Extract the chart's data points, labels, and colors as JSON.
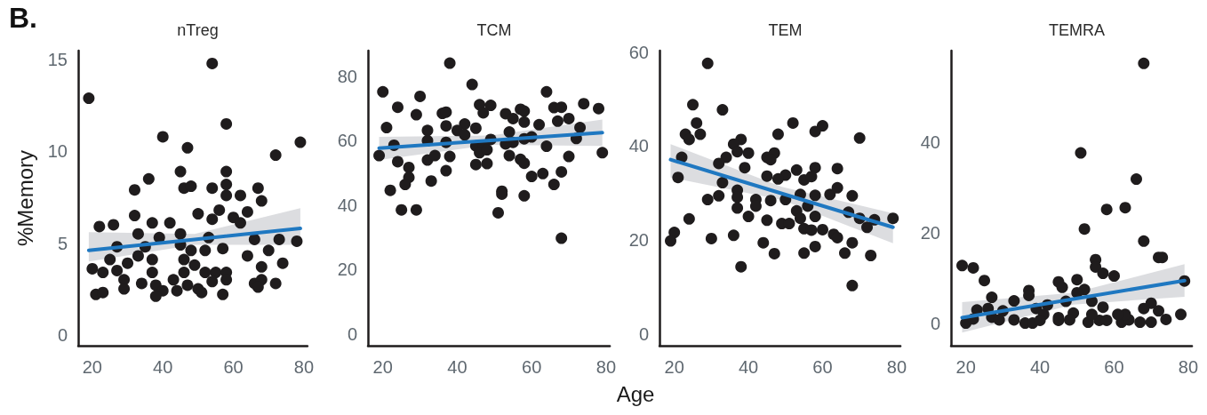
{
  "chart_data": [
    {
      "type": "scatter",
      "title": "nTreg",
      "ylabel": "%Memory",
      "annotations": [
        "B."
      ],
      "marker": "circle",
      "xlim": [
        16,
        81
      ],
      "xticks": [
        20,
        40,
        60,
        80
      ],
      "ylim": [
        -0.6,
        15.5
      ],
      "yticks": [
        0,
        5,
        10,
        15
      ],
      "series": [
        {
          "type": "scatter",
          "color": "#1f1c1d",
          "x": [
            19,
            54,
            58,
            40,
            47,
            79,
            72,
            45,
            58,
            36,
            32,
            46,
            48,
            54,
            58,
            58,
            62,
            67,
            68,
            50,
            64,
            32,
            56,
            54,
            37,
            42,
            26,
            22,
            60,
            62,
            33,
            45,
            39,
            53,
            66,
            73,
            78,
            27,
            35,
            45,
            48,
            52,
            57,
            70,
            33,
            37,
            46,
            64,
            25,
            20,
            23,
            27,
            30,
            49,
            37,
            46,
            52,
            55,
            58,
            68,
            74,
            29,
            34,
            43,
            47,
            54,
            58,
            66,
            68,
            72,
            29,
            38,
            40,
            44,
            50,
            21,
            23,
            38,
            51,
            57,
            67
          ],
          "values": [
            12.9,
            14.8,
            11.5,
            10.8,
            10.2,
            10.5,
            9.8,
            8.9,
            8.9,
            8.5,
            7.9,
            8.0,
            8.1,
            8.0,
            8.2,
            7.6,
            7.6,
            8.0,
            7.3,
            6.6,
            6.7,
            6.5,
            6.8,
            6.3,
            6.1,
            6.1,
            6.0,
            5.9,
            6.4,
            6.1,
            5.5,
            5.5,
            5.3,
            5.3,
            5.2,
            5.2,
            5.1,
            4.8,
            4.8,
            4.9,
            4.6,
            4.6,
            4.7,
            4.6,
            4.3,
            4.1,
            4.1,
            4.3,
            4.1,
            3.6,
            3.4,
            3.5,
            3.9,
            3.8,
            3.4,
            3.4,
            3.4,
            3.4,
            3.4,
            3.7,
            3.9,
            3.0,
            2.8,
            3.0,
            2.7,
            2.9,
            3.0,
            2.8,
            3.0,
            2.8,
            2.5,
            2.7,
            2.4,
            2.4,
            2.5,
            2.2,
            2.3,
            2.1,
            2.3,
            2.2,
            2.6
          ]
        },
        {
          "type": "line",
          "color": "#1f78c1",
          "marker": "none",
          "x": [
            19,
            49,
            79
          ],
          "values": [
            4.6,
            5.2,
            5.8
          ],
          "lower": [
            4.0,
            4.9,
            4.9
          ],
          "upper": [
            5.6,
            5.5,
            6.9
          ]
        }
      ]
    },
    {
      "type": "scatter",
      "title": "TCM",
      "xlabel": "Age",
      "marker": "circle",
      "xlim": [
        16,
        81
      ],
      "xticks": [
        20,
        40,
        60,
        80
      ],
      "ylim": [
        -3.7,
        88
      ],
      "yticks": [
        0,
        20,
        40,
        60,
        80
      ],
      "series": [
        {
          "type": "scatter",
          "color": "#1f1c1d",
          "x": [
            38,
            44,
            20,
            30,
            64,
            24,
            74,
            78,
            46,
            49,
            47,
            29,
            36,
            37,
            53,
            57,
            58,
            66,
            68,
            55,
            58,
            67,
            70,
            21,
            37,
            42,
            45,
            62,
            32,
            40,
            73,
            42,
            54,
            58,
            72,
            32,
            37,
            49,
            55,
            60,
            64,
            23,
            45,
            47,
            53,
            19,
            24,
            32,
            34,
            38,
            46,
            48,
            54,
            57,
            58,
            70,
            79,
            27,
            45,
            48,
            37,
            27,
            60,
            63,
            68,
            26,
            33,
            66,
            22,
            52,
            52,
            58,
            25,
            29,
            51,
            68
          ],
          "values": [
            84.1,
            77.5,
            75.2,
            73.8,
            75.2,
            70.4,
            71.5,
            70.0,
            71.2,
            71.0,
            68.7,
            68.1,
            68.5,
            68.9,
            68.4,
            69.8,
            69.2,
            70.3,
            70.4,
            66.9,
            65.8,
            66.1,
            66.9,
            64.1,
            64.6,
            65.2,
            63.9,
            65.0,
            63.2,
            63.2,
            64.1,
            61.8,
            62.7,
            60.6,
            60.7,
            60.0,
            59.5,
            60.4,
            59.5,
            61.2,
            58.3,
            58.6,
            58.4,
            58.4,
            59.0,
            55.4,
            53.5,
            54.0,
            55.4,
            55.1,
            56.3,
            57.2,
            55.4,
            54.2,
            53.0,
            55.1,
            56.3,
            51.7,
            52.6,
            52.9,
            50.7,
            48.6,
            48.9,
            49.8,
            50.3,
            46.4,
            47.5,
            46.4,
            44.6,
            44.3,
            43.4,
            42.9,
            38.5,
            38.5,
            37.6,
            29.7
          ]
        },
        {
          "type": "line",
          "color": "#1f78c1",
          "marker": "none",
          "x": [
            19,
            49,
            79
          ],
          "values": [
            57.7,
            60.1,
            62.5
          ],
          "lower": [
            54.0,
            58.7,
            58.4
          ],
          "upper": [
            61.2,
            61.6,
            66.6
          ]
        }
      ]
    },
    {
      "type": "scatter",
      "title": "TEM",
      "marker": "circle",
      "xlim": [
        16,
        81
      ],
      "xticks": [
        20,
        40,
        60,
        80
      ],
      "ylim": [
        -2.5,
        60.3
      ],
      "yticks": [
        0,
        20,
        40,
        60
      ],
      "series": [
        {
          "type": "scatter",
          "color": "#1f1c1d",
          "x": [
            29,
            25,
            33,
            26,
            52,
            60,
            58,
            23,
            27,
            24,
            48,
            70,
            38,
            36,
            37,
            40,
            47,
            34,
            45,
            46,
            22,
            32,
            39,
            58,
            64,
            53,
            21,
            45,
            50,
            48,
            55,
            57,
            33,
            37,
            54,
            58,
            62,
            64,
            68,
            29,
            32,
            42,
            46,
            50,
            37,
            37,
            42,
            56,
            53,
            54,
            58,
            67,
            70,
            74,
            79,
            24,
            40,
            45,
            72,
            49,
            51,
            55,
            57,
            60,
            63,
            64,
            20,
            19,
            30,
            36,
            44,
            68,
            58,
            47,
            55,
            66,
            73,
            38,
            68
          ],
          "values": [
            57.6,
            48.8,
            47.7,
            44.9,
            44.9,
            44.3,
            43.1,
            42.5,
            42.5,
            41.4,
            42.5,
            41.7,
            41.4,
            40.4,
            38.8,
            38.5,
            38.5,
            37.6,
            37.6,
            37.1,
            37.6,
            36.3,
            35.4,
            35.4,
            35.2,
            34.9,
            33.3,
            33.6,
            33.8,
            33.0,
            32.8,
            33.5,
            32.2,
            30.6,
            29.7,
            29.5,
            29.7,
            31.1,
            29.4,
            28.6,
            29.4,
            28.6,
            28.4,
            28.6,
            29.1,
            26.8,
            27.2,
            27.2,
            26.2,
            24.6,
            25.0,
            25.9,
            24.6,
            24.3,
            24.6,
            24.5,
            25.0,
            24.2,
            22.7,
            23.5,
            23.5,
            22.4,
            22.1,
            22.2,
            21.2,
            20.5,
            21.6,
            19.8,
            20.3,
            21.0,
            19.4,
            19.4,
            18.6,
            17.1,
            17.2,
            17.2,
            16.7,
            14.3,
            10.3
          ]
        },
        {
          "type": "line",
          "color": "#1f78c1",
          "marker": "none",
          "x": [
            19,
            49,
            79
          ],
          "values": [
            37.1,
            29.9,
            22.7
          ],
          "lower": [
            33.3,
            28.5,
            19.3
          ],
          "upper": [
            40.4,
            31.3,
            25.7
          ]
        }
      ]
    },
    {
      "type": "scatter",
      "title": "TEMRA",
      "marker": "circle",
      "xlim": [
        16,
        81
      ],
      "xticks": [
        20,
        40,
        60,
        80
      ],
      "ylim": [
        -4.9,
        60.3
      ],
      "yticks": [
        0,
        20,
        40
      ],
      "series": [
        {
          "type": "scatter",
          "color": "#1f1c1d",
          "x": [
            68,
            51,
            66,
            58,
            63,
            52,
            68,
            19,
            22,
            55,
            55,
            72,
            73,
            57,
            60,
            25,
            45,
            50,
            46,
            79,
            37,
            27,
            52,
            37,
            33,
            50,
            54,
            70,
            68,
            57,
            72,
            42,
            23,
            26,
            30,
            47,
            39,
            49,
            45,
            41,
            20,
            22,
            27,
            29,
            33,
            36,
            38,
            40,
            45,
            48,
            53,
            56,
            58,
            62,
            64,
            67,
            70,
            74,
            78,
            54,
            63,
            61
          ],
          "values": [
            57.5,
            37.7,
            31.9,
            25.2,
            25.6,
            20.9,
            18.2,
            12.8,
            12.3,
            14.1,
            12.5,
            14.6,
            14.6,
            11.1,
            10.5,
            9.5,
            9.2,
            9.7,
            8.0,
            9.4,
            7.3,
            5.8,
            7.5,
            6.2,
            5.0,
            6.8,
            4.9,
            4.5,
            3.3,
            3.6,
            2.8,
            4.1,
            3.0,
            3.3,
            2.8,
            4.9,
            3.3,
            2.3,
            1.3,
            2.0,
            0.1,
            1.0,
            1.4,
            0.8,
            0.8,
            0.1,
            0.1,
            0.7,
            0.7,
            0.8,
            0.3,
            0.7,
            0.7,
            0.3,
            0.8,
            0.3,
            0.3,
            0.9,
            2.0,
            2.0,
            2.0,
            2.0
          ]
        },
        {
          "type": "line",
          "color": "#1f78c1",
          "marker": "none",
          "x": [
            19,
            49,
            79
          ],
          "values": [
            1.3,
            5.4,
            9.5
          ],
          "lower": [
            -2.0,
            4.2,
            5.9
          ],
          "upper": [
            4.7,
            6.8,
            13.1
          ]
        }
      ]
    }
  ]
}
